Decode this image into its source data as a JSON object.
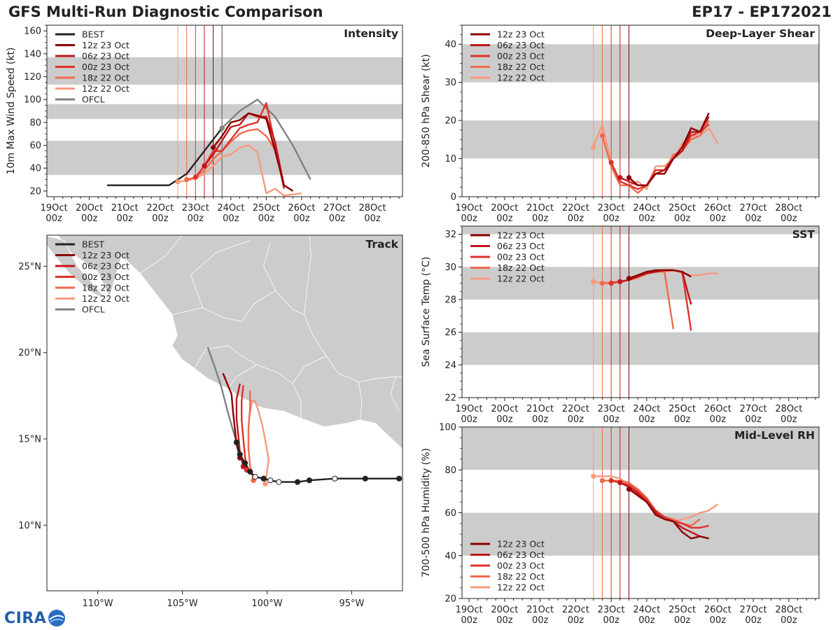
{
  "header": {
    "left_title": "GFS Multi-Run Diagnostic Comparison",
    "right_title": "EP17 - EP172021"
  },
  "logo": {
    "text": "CIRA"
  },
  "colors": {
    "BEST": "#222222",
    "OFCL": "#808080",
    "12z 23 Oct": "#8b0000",
    "06z 23 Oct": "#c0161b",
    "00z 23 Oct": "#e0312b",
    "18z 22 Oct": "#ef6a4c",
    "12z 22 Oct": "#f89a7c",
    "band": "#cccccc",
    "land": "#cccccc",
    "border": "#ffffff"
  },
  "time_axis": {
    "tick_labels_top": [
      "19Oct",
      "20Oct",
      "21Oct",
      "22Oct",
      "23Oct",
      "24Oct",
      "25Oct",
      "26Oct",
      "27Oct",
      "28Oct"
    ],
    "tick_labels_bottom": [
      "00z",
      "00z",
      "00z",
      "00z",
      "00z",
      "00z",
      "00z",
      "00z",
      "00z",
      "00z"
    ],
    "range_days": [
      18.8,
      28.85
    ],
    "init_lines": {
      "12z 22 Oct": 22.5,
      "18z 22 Oct": 22.75,
      "00z 23 Oct": 23.0,
      "06z 23 Oct": 23.25,
      "12z 23 Oct": 23.5
    },
    "ofcl_line": 23.75
  },
  "chart_data": [
    {
      "id": "intensity",
      "type": "line",
      "title": "Intensity",
      "ylabel": "10m Max Wind Speed (kt)",
      "ylim": [
        15,
        165
      ],
      "yticks": [
        20,
        40,
        60,
        80,
        100,
        120,
        140,
        160
      ],
      "bands": [
        [
          34,
          64
        ],
        [
          83,
          96
        ],
        [
          113,
          137
        ]
      ],
      "legend": [
        "BEST",
        "12z 23 Oct",
        "06z 23 Oct",
        "00z 23 Oct",
        "18z 22 Oct",
        "12z 22 Oct",
        "OFCL"
      ],
      "series": [
        {
          "name": "BEST",
          "x": [
            20.5,
            22.25,
            22.5,
            22.75,
            23.0,
            23.25,
            23.5,
            23.75
          ],
          "y": [
            25,
            25,
            30,
            35,
            45,
            55,
            65,
            75
          ],
          "markers": []
        },
        {
          "name": "OFCL",
          "x": [
            23.75,
            24.25,
            24.75,
            25.25,
            25.75,
            26.25
          ],
          "y": [
            75,
            90,
            100,
            85,
            60,
            30
          ],
          "markers": [
            23.75
          ]
        },
        {
          "name": "12z 22 Oct",
          "x": [
            22.5,
            22.75,
            23.0,
            23.25,
            23.5,
            23.75,
            24.0,
            24.25,
            24.5,
            24.75,
            25.0,
            25.25,
            25.5,
            25.75,
            26.0
          ],
          "y": [
            28,
            29,
            31,
            35,
            42,
            50,
            52,
            58,
            60,
            54,
            18,
            22,
            16,
            17,
            18
          ],
          "markers": [
            22.5
          ]
        },
        {
          "name": "18z 22 Oct",
          "x": [
            22.75,
            23.0,
            23.25,
            23.5,
            23.75,
            24.0,
            24.25,
            24.5,
            24.75,
            25.0,
            25.25
          ],
          "y": [
            30,
            32,
            38,
            48,
            55,
            63,
            70,
            73,
            74,
            68,
            56
          ],
          "markers": [
            22.75
          ]
        },
        {
          "name": "00z 23 Oct",
          "x": [
            23.0,
            23.25,
            23.5,
            23.75,
            24.0,
            24.25,
            24.5,
            24.75,
            25.0,
            25.25,
            25.5
          ],
          "y": [
            32,
            42,
            55,
            55,
            65,
            75,
            78,
            80,
            97,
            60,
            22
          ],
          "markers": [
            23.0
          ]
        },
        {
          "name": "06z 23 Oct",
          "x": [
            23.25,
            23.5,
            23.75,
            24.0,
            24.25,
            24.5,
            24.75,
            25.0,
            25.25,
            25.5,
            25.75
          ],
          "y": [
            42,
            52,
            64,
            76,
            78,
            88,
            85,
            85,
            63,
            25,
            20
          ],
          "markers": [
            23.25
          ]
        },
        {
          "name": "12z 23 Oct",
          "x": [
            23.5,
            23.75,
            24.0,
            24.25,
            24.5,
            24.75,
            25.0,
            25.25,
            25.5,
            25.75
          ],
          "y": [
            58,
            68,
            80,
            82,
            88,
            86,
            83,
            55,
            25,
            20
          ],
          "markers": [
            23.5
          ]
        }
      ]
    },
    {
      "id": "shear",
      "type": "line",
      "title": "Deep-Layer Shear",
      "ylabel": "200-850 hPa Shear (kt)",
      "ylim": [
        0,
        45
      ],
      "yticks": [
        0,
        10,
        20,
        30,
        40
      ],
      "bands": [
        [
          10,
          20
        ],
        [
          30,
          40
        ]
      ],
      "legend": [
        "12z 23 Oct",
        "06z 23 Oct",
        "00z 23 Oct",
        "18z 22 Oct",
        "12z 22 Oct"
      ],
      "series": [
        {
          "name": "12z 22 Oct",
          "x": [
            22.5,
            22.75,
            23.0,
            23.25,
            23.5,
            23.75,
            24.0,
            24.25,
            24.5,
            24.75,
            25.0,
            25.25,
            25.5,
            25.75,
            26.0
          ],
          "y": [
            13,
            19,
            9,
            4,
            3,
            4,
            2,
            8,
            8,
            10,
            14,
            16,
            16,
            18,
            14
          ],
          "markers": [
            22.5
          ]
        },
        {
          "name": "18z 22 Oct",
          "x": [
            22.75,
            23.0,
            23.25,
            23.5,
            23.75,
            24.0,
            24.25,
            24.5,
            24.75,
            25.0,
            25.25,
            25.5,
            25.75
          ],
          "y": [
            16,
            8,
            3,
            3,
            1,
            3,
            6,
            7,
            11,
            12,
            15,
            16,
            20
          ],
          "markers": [
            22.75
          ]
        },
        {
          "name": "00z 23 Oct",
          "x": [
            23.0,
            23.25,
            23.5,
            23.75,
            24.0,
            24.25,
            24.5,
            24.75,
            25.0,
            25.25,
            25.5,
            25.75
          ],
          "y": [
            9,
            4,
            3,
            2,
            3,
            7,
            7,
            10,
            12,
            16,
            17,
            19
          ],
          "markers": [
            23.0
          ]
        },
        {
          "name": "06z 23 Oct",
          "x": [
            23.25,
            23.5,
            23.75,
            24.0,
            24.25,
            24.5,
            24.75,
            25.0,
            25.25,
            25.5,
            25.75
          ],
          "y": [
            5,
            4,
            3,
            3,
            6,
            7,
            10,
            12,
            17,
            17,
            21
          ],
          "markers": [
            23.25
          ]
        },
        {
          "name": "12z 23 Oct",
          "x": [
            23.5,
            23.75,
            24.0,
            24.25,
            24.5,
            24.75,
            25.0,
            25.25,
            25.5,
            25.75
          ],
          "y": [
            5,
            3,
            3,
            6,
            6,
            10,
            13,
            18,
            17,
            22
          ],
          "markers": [
            23.5
          ]
        }
      ]
    },
    {
      "id": "sst",
      "type": "line",
      "title": "SST",
      "ylabel": "Sea Surface Temp (°C)",
      "ylim": [
        22,
        32.5
      ],
      "yticks": [
        22,
        24,
        26,
        28,
        30,
        32
      ],
      "bands": [
        [
          24,
          26
        ],
        [
          28,
          30
        ],
        [
          32,
          34
        ]
      ],
      "legend": [
        "12z 23 Oct",
        "06z 23 Oct",
        "00z 23 Oct",
        "18z 22 Oct",
        "12z 22 Oct"
      ],
      "series": [
        {
          "name": "12z 22 Oct",
          "x": [
            22.5,
            22.75,
            23.0,
            23.25,
            23.5,
            23.75,
            24.0,
            24.25,
            24.5,
            24.75,
            25.0,
            25.25,
            25.5,
            25.75,
            26.0
          ],
          "y": [
            29.1,
            29.0,
            29.1,
            29.1,
            29.2,
            29.3,
            29.6,
            29.7,
            29.7,
            29.8,
            29.6,
            29.5,
            29.5,
            29.6,
            29.6
          ],
          "markers": [
            22.5
          ]
        },
        {
          "name": "18z 22 Oct",
          "x": [
            22.75,
            23.0,
            23.25,
            23.5,
            23.75,
            24.0,
            24.25,
            24.5,
            24.75
          ],
          "y": [
            29.0,
            29.0,
            29.1,
            29.2,
            29.4,
            29.6,
            29.7,
            29.7,
            26.2
          ],
          "markers": [
            22.75
          ]
        },
        {
          "name": "00z 23 Oct",
          "x": [
            23.0,
            23.25,
            23.5,
            23.75,
            24.0,
            24.25,
            24.5,
            24.75,
            25.0,
            25.25
          ],
          "y": [
            29.0,
            29.1,
            29.2,
            29.4,
            29.6,
            29.7,
            29.8,
            29.8,
            29.7,
            26.1
          ],
          "markers": [
            23.0
          ]
        },
        {
          "name": "06z 23 Oct",
          "x": [
            23.25,
            23.5,
            23.75,
            24.0,
            24.25,
            24.5,
            24.75,
            25.0,
            25.25
          ],
          "y": [
            29.1,
            29.2,
            29.4,
            29.6,
            29.7,
            29.8,
            29.8,
            29.7,
            27.7
          ],
          "markers": [
            23.25
          ]
        },
        {
          "name": "12z 23 Oct",
          "x": [
            23.5,
            23.75,
            24.0,
            24.25,
            24.5,
            24.75,
            25.0,
            25.25
          ],
          "y": [
            29.3,
            29.5,
            29.7,
            29.8,
            29.8,
            29.8,
            29.7,
            29.4
          ],
          "markers": [
            23.5
          ]
        }
      ]
    },
    {
      "id": "rh",
      "type": "line",
      "title": "Mid-Level RH",
      "ylabel": "700-500 hPa Humidity (%)",
      "ylim": [
        20,
        100
      ],
      "yticks": [
        20,
        40,
        60,
        80,
        100
      ],
      "bands": [
        [
          40,
          60
        ],
        [
          80,
          100
        ]
      ],
      "legend": [
        "12z 23 Oct",
        "06z 23 Oct",
        "00z 23 Oct",
        "18z 22 Oct",
        "12z 22 Oct"
      ],
      "series": [
        {
          "name": "12z 22 Oct",
          "x": [
            22.5,
            22.75,
            23.0,
            23.25,
            23.5,
            23.75,
            24.0,
            24.25,
            24.5,
            24.75,
            25.0,
            25.25,
            25.5,
            25.75,
            26.0
          ],
          "y": [
            77,
            77,
            77,
            76,
            73,
            70,
            66,
            61,
            58,
            56,
            57,
            58,
            60,
            61,
            64
          ],
          "markers": [
            22.5
          ]
        },
        {
          "name": "18z 22 Oct",
          "x": [
            22.75,
            23.0,
            23.25,
            23.5,
            23.75,
            24.0,
            24.25,
            24.5,
            24.75,
            25.0,
            25.25,
            25.5
          ],
          "y": [
            75,
            75,
            75,
            74,
            71,
            67,
            61,
            58,
            57,
            55,
            54,
            57
          ],
          "markers": [
            22.75
          ]
        },
        {
          "name": "00z 23 Oct",
          "x": [
            23.0,
            23.25,
            23.5,
            23.75,
            24.0,
            24.25,
            24.5,
            24.75,
            25.0,
            25.25,
            25.5,
            25.75
          ],
          "y": [
            75,
            74,
            73,
            70,
            66,
            61,
            58,
            56,
            55,
            53,
            53,
            54
          ],
          "markers": [
            23.0
          ]
        },
        {
          "name": "06z 23 Oct",
          "x": [
            23.25,
            23.5,
            23.75,
            24.0,
            24.25,
            24.5,
            24.75,
            25.0,
            25.25,
            25.5
          ],
          "y": [
            74,
            72,
            69,
            65,
            60,
            57,
            56,
            53,
            51,
            49
          ],
          "markers": [
            23.25
          ]
        },
        {
          "name": "12z 23 Oct",
          "x": [
            23.5,
            23.75,
            24.0,
            24.25,
            24.5,
            24.75,
            25.0,
            25.25,
            25.5,
            25.75
          ],
          "y": [
            71,
            68,
            65,
            59,
            57,
            56,
            51,
            48,
            49,
            48
          ],
          "markers": [
            23.5
          ]
        }
      ]
    },
    {
      "id": "track",
      "type": "scatter",
      "title": "Track",
      "xlim": [
        -113,
        -92
      ],
      "ylim": [
        6.2,
        26.8
      ],
      "xticks": [
        -110,
        -105,
        -100,
        -95
      ],
      "xtick_labels": [
        "110°W",
        "105°W",
        "100°W",
        "95°W"
      ],
      "yticks": [
        10,
        15,
        20,
        25
      ],
      "ytick_labels": [
        "10°N",
        "15°N",
        "20°N",
        "25°N"
      ],
      "legend": [
        "BEST",
        "12z 23 Oct",
        "06z 23 Oct",
        "00z 23 Oct",
        "18z 22 Oct",
        "12z 22 Oct",
        "OFCL"
      ],
      "series": [
        {
          "name": "BEST",
          "lon": [
            -92.2,
            -94.2,
            -96.0,
            -97.5,
            -98.2,
            -99.3,
            -99.8,
            -100.2,
            -100.7,
            -101.0,
            -101.3,
            -101.6,
            -101.8
          ],
          "lat": [
            12.7,
            12.7,
            12.7,
            12.6,
            12.5,
            12.5,
            12.6,
            12.7,
            12.8,
            13.1,
            13.6,
            14.1,
            14.8
          ],
          "filled": [
            true,
            true,
            false,
            true,
            true,
            false,
            false,
            true,
            false,
            true,
            true,
            true,
            true
          ]
        },
        {
          "name": "OFCL",
          "lon": [
            -101.8,
            -102.3,
            -102.7,
            -103.1,
            -103.5
          ],
          "lat": [
            14.8,
            16.5,
            18.0,
            19.2,
            20.3
          ],
          "filled": []
        },
        {
          "name": "12z 22 Oct",
          "lon": [
            -100.1,
            -100.0,
            -99.9,
            -100.1,
            -100.3,
            -100.5,
            -100.7,
            -100.9,
            -101.0
          ],
          "lat": [
            12.4,
            13.1,
            13.8,
            14.9,
            15.9,
            16.6,
            17.2,
            17.2,
            16.5
          ],
          "filled": [
            true
          ]
        },
        {
          "name": "18z 22 Oct",
          "lon": [
            -100.8,
            -101.0,
            -101.1,
            -101.1,
            -101.0,
            -101.0
          ],
          "lat": [
            12.6,
            13.4,
            14.5,
            15.6,
            16.8,
            17.8
          ],
          "filled": [
            true
          ]
        },
        {
          "name": "00z 23 Oct",
          "lon": [
            -101.2,
            -101.3,
            -101.4,
            -101.5,
            -101.5,
            -101.4
          ],
          "lat": [
            13.2,
            14.0,
            15.0,
            16.1,
            17.2,
            18.1
          ],
          "filled": [
            true
          ]
        },
        {
          "name": "06z 23 Oct",
          "lon": [
            -101.4,
            -101.6,
            -101.7,
            -101.8,
            -101.8,
            -101.6
          ],
          "lat": [
            13.4,
            14.2,
            15.2,
            16.2,
            17.3,
            18.2
          ],
          "filled": [
            true
          ]
        },
        {
          "name": "12z 23 Oct",
          "lon": [
            -101.6,
            -101.8,
            -101.9,
            -102.0,
            -102.1,
            -102.6
          ],
          "lat": [
            13.9,
            14.7,
            15.6,
            16.5,
            17.6,
            18.8
          ],
          "filled": [
            true
          ]
        }
      ]
    }
  ]
}
